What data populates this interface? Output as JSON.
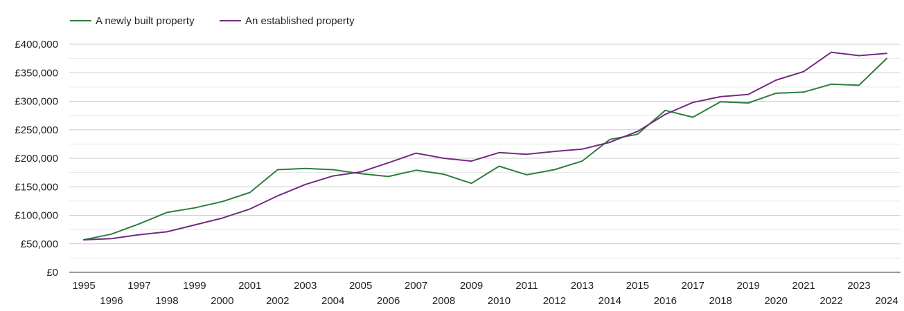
{
  "chart_data": {
    "type": "line",
    "title": "",
    "xlabel": "",
    "ylabel": "",
    "legend_position": "top-left",
    "grid": true,
    "x": [
      1995,
      1996,
      1997,
      1998,
      1999,
      2000,
      2001,
      2002,
      2003,
      2004,
      2005,
      2006,
      2007,
      2008,
      2009,
      2010,
      2011,
      2012,
      2013,
      2014,
      2015,
      2016,
      2017,
      2018,
      2019,
      2020,
      2021,
      2022,
      2023,
      2024
    ],
    "x_tick_labels": [
      "1995",
      "1996",
      "1997",
      "1998",
      "1999",
      "2000",
      "2001",
      "2002",
      "2003",
      "2004",
      "2005",
      "2006",
      "2007",
      "2008",
      "2009",
      "2010",
      "2011",
      "2012",
      "2013",
      "2014",
      "2015",
      "2016",
      "2017",
      "2018",
      "2019",
      "2020",
      "2021",
      "2022",
      "2023",
      "2024"
    ],
    "ylim": [
      0,
      400000
    ],
    "y_ticks": [
      0,
      50000,
      100000,
      150000,
      200000,
      250000,
      300000,
      350000,
      400000
    ],
    "y_tick_labels": [
      "£0",
      "£50,000",
      "£100,000",
      "£150,000",
      "£200,000",
      "£250,000",
      "£300,000",
      "£350,000",
      "£400,000"
    ],
    "series": [
      {
        "name": "A newly built property",
        "color": "#2e7d3e",
        "values": [
          57000,
          67000,
          85000,
          105000,
          113000,
          124000,
          140000,
          180000,
          182000,
          180000,
          173000,
          168000,
          179000,
          172000,
          156000,
          186000,
          171000,
          180000,
          195000,
          233000,
          242000,
          284000,
          272000,
          299000,
          297000,
          314000,
          316000,
          330000,
          328000,
          375000
        ]
      },
      {
        "name": "An established property",
        "color": "#722b7f",
        "values": [
          57000,
          59000,
          66000,
          71000,
          83000,
          95000,
          111000,
          134000,
          154000,
          169000,
          176000,
          192000,
          209000,
          200000,
          195000,
          210000,
          207000,
          212000,
          216000,
          228000,
          247000,
          277000,
          298000,
          308000,
          312000,
          337000,
          352000,
          386000,
          380000,
          384000
        ]
      }
    ]
  }
}
